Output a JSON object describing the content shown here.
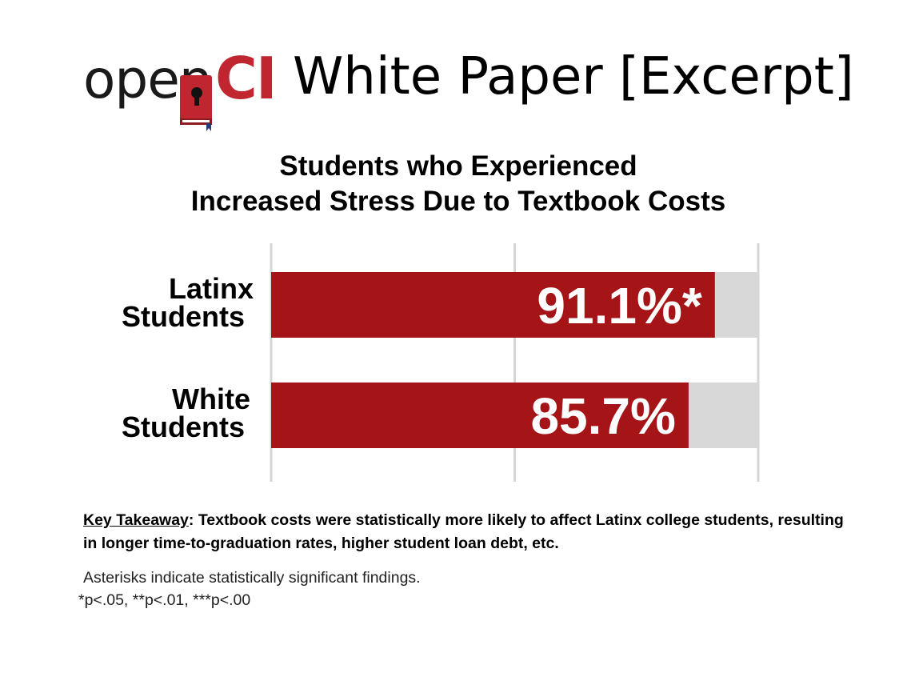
{
  "header": {
    "logo_text_open": "open",
    "logo_text_ci": "CI",
    "title": "White Paper [Excerpt]",
    "brand_color": "#c0262f"
  },
  "chart_data": {
    "type": "bar",
    "orientation": "horizontal",
    "title_lines": [
      "Students who Experienced",
      "Increased Stress Due to Textbook Costs"
    ],
    "categories": [
      {
        "line1": "Latinx",
        "line2": "Students"
      },
      {
        "line1": "White",
        "line2": "Students"
      }
    ],
    "values": [
      91.1,
      85.7
    ],
    "value_labels": [
      "91.1%*",
      "85.7%"
    ],
    "xlim": [
      0,
      100
    ],
    "grid": true,
    "bar_color": "#a51416",
    "background_bar_color": "#d8d8d8"
  },
  "takeaway": {
    "label": "Key Takeaway",
    "text": ": Textbook costs were statistically more likely to affect Latinx college students, resulting in longer time-to-graduation rates, higher student loan debt, etc."
  },
  "footnote": {
    "line1": "Asterisks indicate statistically significant findings.",
    "line2": "*p<.05, **p<.01, ***p<.00"
  }
}
